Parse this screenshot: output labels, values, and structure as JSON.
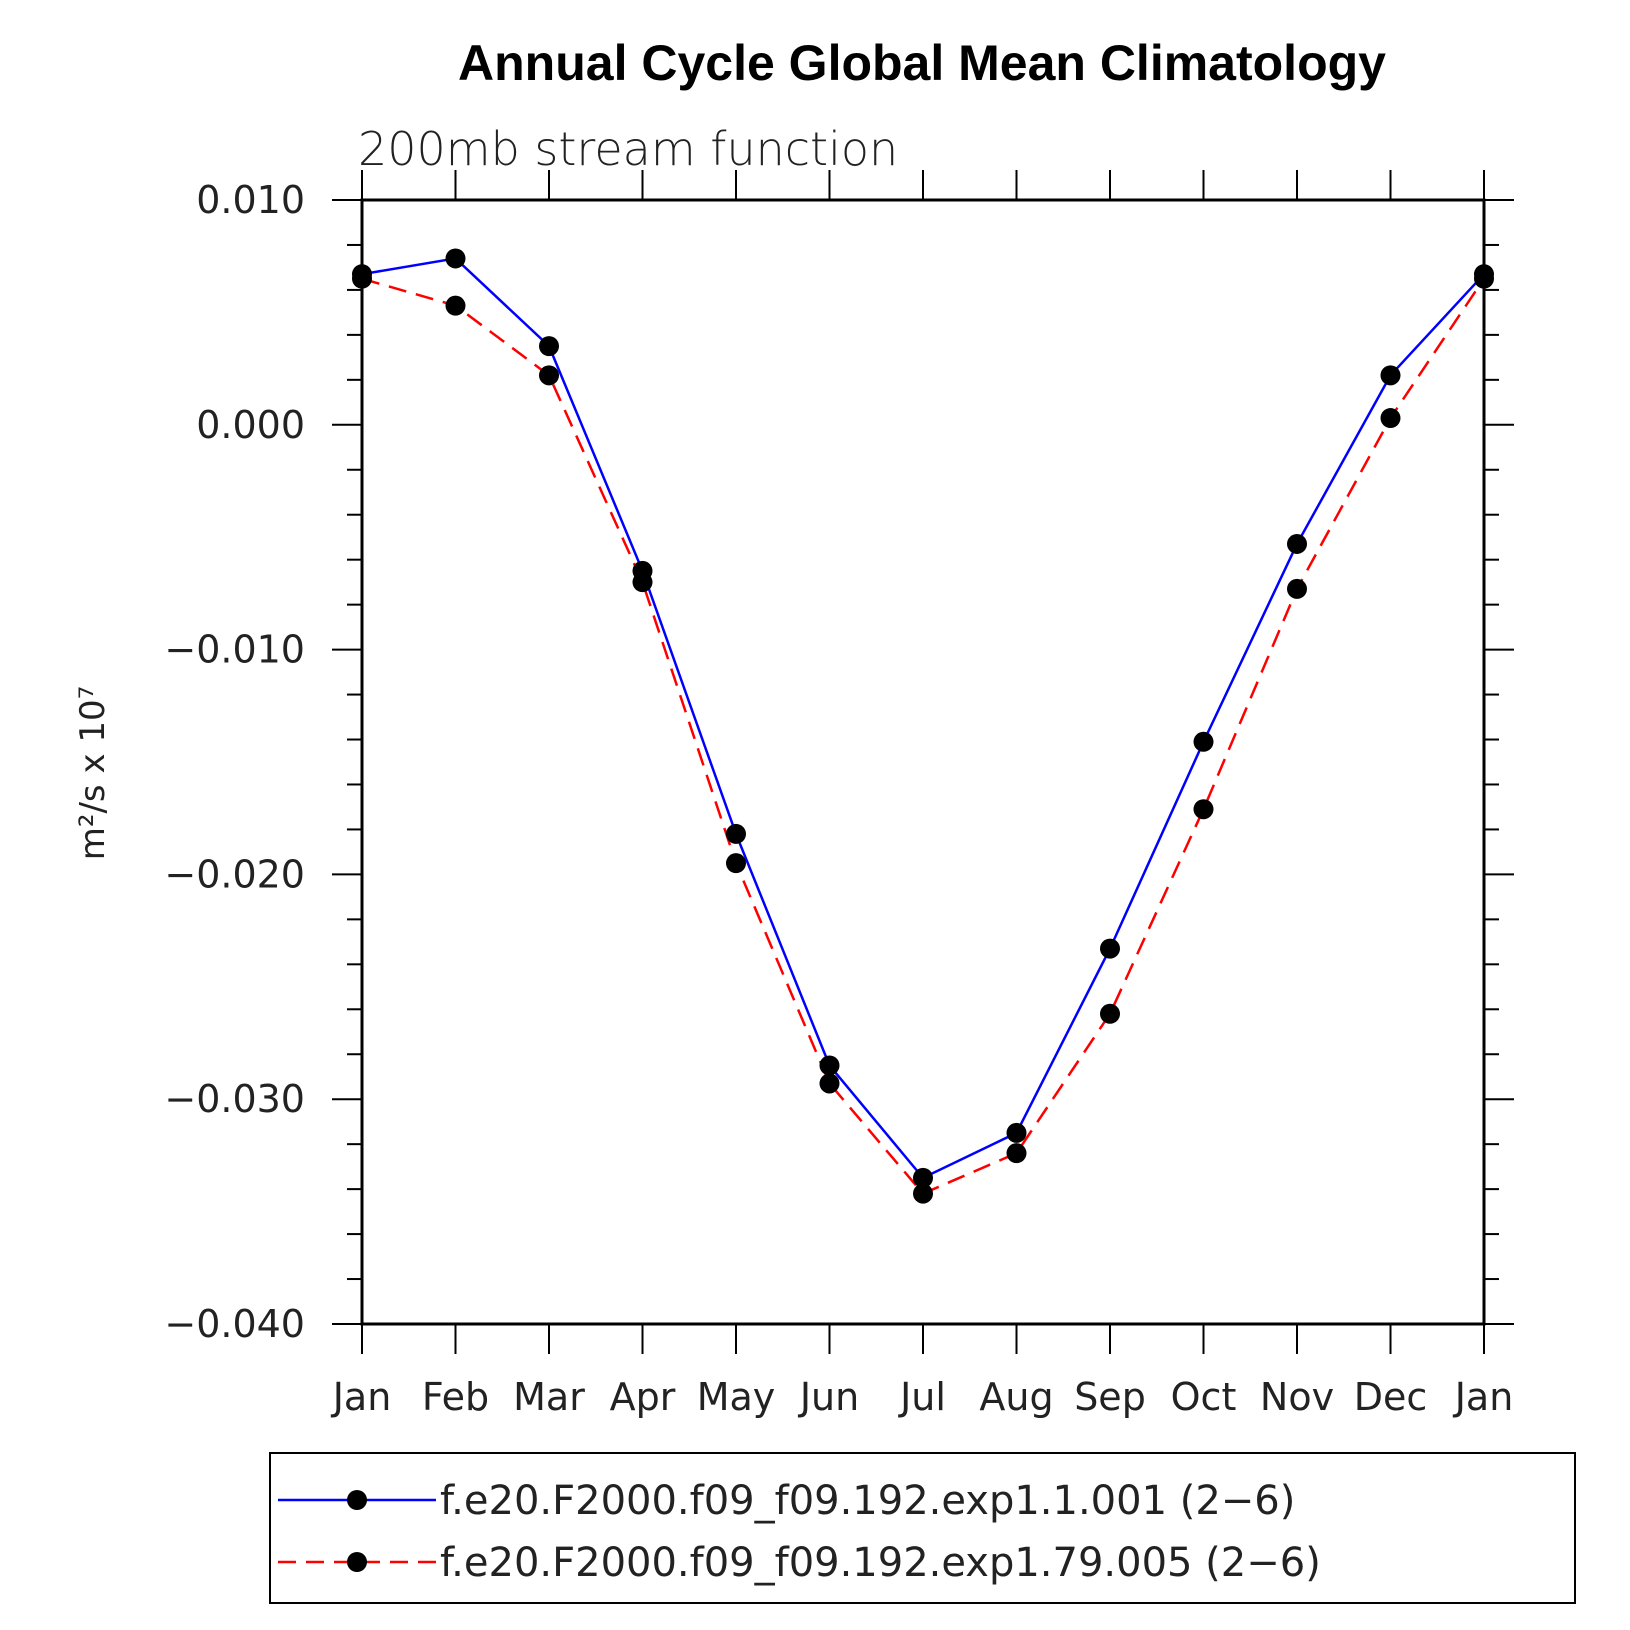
{
  "chart_data": {
    "type": "line",
    "title": "Annual Cycle Global Mean Climatology",
    "subtitle": "200mb stream function",
    "ylabel": "m²/s x 10⁷",
    "xlabel": "",
    "categories": [
      "Jan",
      "Feb",
      "Mar",
      "Apr",
      "May",
      "Jun",
      "Jul",
      "Aug",
      "Sep",
      "Oct",
      "Nov",
      "Dec",
      "Jan"
    ],
    "ylim": [
      -0.04,
      0.01
    ],
    "yticks": [
      0.01,
      0.0,
      -0.01,
      -0.02,
      -0.03,
      -0.04
    ],
    "ytick_labels": [
      "0.010",
      "0.000",
      "−0.010",
      "−0.020",
      "−0.030",
      "−0.040"
    ],
    "series": [
      {
        "name": "f.e20.F2000.f09_f09.192.exp1.1.001 (2−6)",
        "color": "#0000ff",
        "dash": "solid",
        "values": [
          0.0067,
          0.0074,
          0.0035,
          -0.0065,
          -0.0182,
          -0.0285,
          -0.0335,
          -0.0315,
          -0.0233,
          -0.0141,
          -0.0053,
          0.0022,
          0.0067
        ]
      },
      {
        "name": "f.e20.F2000.f09_f09.192.exp1.79.005 (2−6)",
        "color": "#ff0000",
        "dash": "dashed",
        "values": [
          0.0065,
          0.0053,
          0.0022,
          -0.007,
          -0.0195,
          -0.0293,
          -0.0342,
          -0.0324,
          -0.0262,
          -0.0171,
          -0.0073,
          0.0003,
          0.0065
        ]
      }
    ],
    "marker_color": "#000000",
    "grid": false,
    "legend_position": "bottom"
  }
}
